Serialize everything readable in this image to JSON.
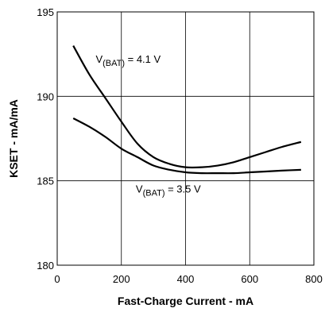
{
  "chart_data": {
    "type": "line",
    "title": "",
    "xlabel": "Fast-Charge Current - mA",
    "ylabel": "KSET - mA/mA",
    "xlim": [
      0,
      800
    ],
    "ylim": [
      180,
      195
    ],
    "x_ticks": [
      "0",
      "200",
      "400",
      "600",
      "800"
    ],
    "y_ticks": [
      "180",
      "185",
      "190",
      "195"
    ],
    "grid": true,
    "series": [
      {
        "name": "V(BAT) = 4.1 V",
        "label_main": "V",
        "label_sub": "(BAT)",
        "label_rest": " = 4.1 V",
        "x": [
          50,
          100,
          150,
          200,
          250,
          300,
          350,
          400,
          450,
          500,
          550,
          600,
          650,
          700,
          760
        ],
        "y": [
          193.0,
          191.3,
          189.9,
          188.5,
          187.2,
          186.4,
          186.0,
          185.8,
          185.8,
          185.9,
          186.1,
          186.4,
          186.7,
          187.0,
          187.3
        ]
      },
      {
        "name": "V(BAT) = 3.5 V",
        "label_main": "V",
        "label_sub": "(BAT)",
        "label_rest": " = 3.5 V",
        "x": [
          50,
          100,
          150,
          200,
          250,
          300,
          350,
          400,
          450,
          500,
          550,
          600,
          650,
          700,
          760
        ],
        "y": [
          188.7,
          188.2,
          187.6,
          186.9,
          186.4,
          185.9,
          185.65,
          185.5,
          185.45,
          185.45,
          185.45,
          185.5,
          185.55,
          185.6,
          185.65
        ]
      }
    ]
  }
}
